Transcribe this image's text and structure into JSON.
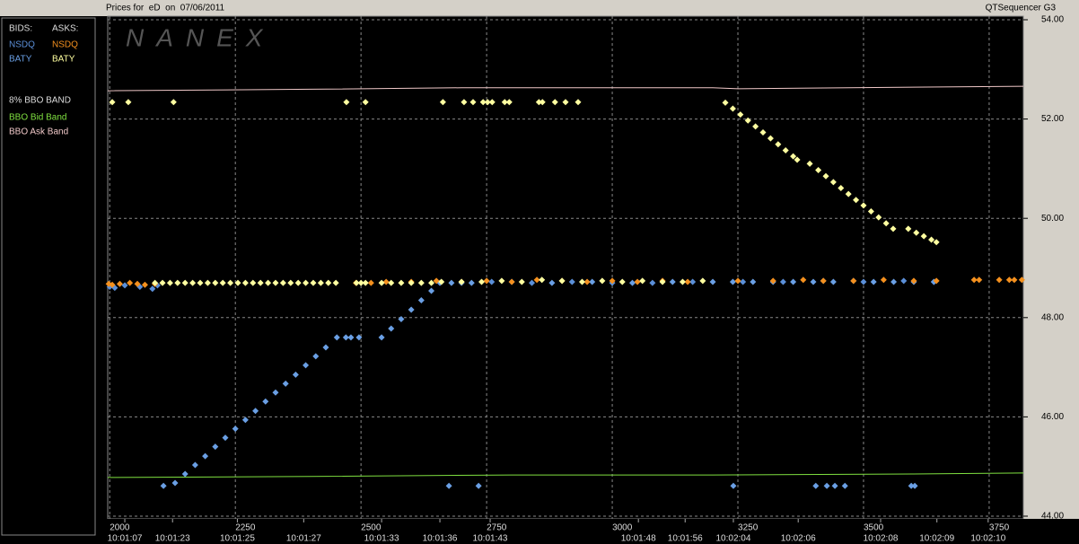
{
  "chart_data": {
    "type": "scatter",
    "title": "Prices for  eD  on  07/06/2011",
    "product": "QTSequencer G3",
    "watermark": "NANEX",
    "legend": {
      "bids_label": "BIDS:",
      "asks_label": "ASKS:",
      "band_label": "8% BBO BAND"
    },
    "xlim": [
      1996,
      3818
    ],
    "ylim": [
      44,
      54
    ],
    "xticks": [
      2000,
      2250,
      2500,
      2750,
      3000,
      3250,
      3500,
      3750
    ],
    "yticks": [
      {
        "value": 44,
        "label": "44.00"
      },
      {
        "value": 46,
        "label": "46.00"
      },
      {
        "value": 48,
        "label": "48.00"
      },
      {
        "value": 50,
        "label": "50.00"
      },
      {
        "value": 52,
        "label": "52.00"
      },
      {
        "value": 54,
        "label": "54.00"
      }
    ],
    "time_ticks": [
      {
        "value": 2030,
        "label": "10:01:07"
      },
      {
        "value": 2125,
        "label": "10:01:23"
      },
      {
        "value": 2254,
        "label": "10:01:25"
      },
      {
        "value": 2386,
        "label": "10:01:27"
      },
      {
        "value": 2541,
        "label": "10:01:33"
      },
      {
        "value": 2657,
        "label": "10:01:36"
      },
      {
        "value": 2757,
        "label": "10:01:43"
      },
      {
        "value": 3052,
        "label": "10:01:48"
      },
      {
        "value": 3145,
        "label": "10:01:56"
      },
      {
        "value": 3241,
        "label": "10:02:04"
      },
      {
        "value": 3370,
        "label": "10:02:06"
      },
      {
        "value": 3534,
        "label": "10:02:08"
      },
      {
        "value": 3646,
        "label": "10:02:09"
      },
      {
        "value": 3748,
        "label": "10:02:10"
      }
    ],
    "grid": true,
    "series": [
      {
        "name": "NSDQ",
        "side": "bid",
        "kind": "points",
        "color": "#5b8fd8",
        "x": [
          2000,
          2010,
          2030,
          2060,
          2085,
          2095,
          2700,
          2760,
          2840,
          2920,
          3000,
          3080,
          3160,
          3260,
          3340,
          3420,
          3500,
          3580,
          3640
        ],
        "values": [
          48.62,
          48.6,
          48.65,
          48.62,
          48.58,
          48.65,
          48.7,
          48.72,
          48.7,
          48.72,
          48.7,
          48.7,
          48.72,
          48.72,
          48.72,
          48.74,
          48.72,
          48.74,
          48.72
        ]
      },
      {
        "name": "BATY",
        "side": "bid",
        "kind": "points",
        "color": "#6a9fe4",
        "x": [
          2130,
          2150,
          2170,
          2190,
          2210,
          2230,
          2250,
          2270,
          2290,
          2310,
          2330,
          2350,
          2370,
          2390,
          2410,
          2430,
          2452,
          2470,
          2480,
          2496,
          2541,
          2560,
          2580,
          2600,
          2620,
          2640,
          2657,
          2680,
          2720,
          2800,
          2880,
          2960,
          3040,
          3120,
          3200,
          3240,
          3280,
          3320,
          3360,
          3400,
          3440,
          3480,
          3520,
          3560,
          3600,
          3640,
          2107,
          2675,
          2734,
          3241,
          3405,
          3427,
          3443,
          3463,
          3595,
          3602
        ],
        "values": [
          44.67,
          44.85,
          45.03,
          45.21,
          45.4,
          45.58,
          45.76,
          45.94,
          46.12,
          46.31,
          46.49,
          46.67,
          46.85,
          47.04,
          47.22,
          47.4,
          47.6,
          47.6,
          47.6,
          47.6,
          47.6,
          47.78,
          47.97,
          48.16,
          48.35,
          48.54,
          48.7,
          48.7,
          48.7,
          48.72,
          48.7,
          48.72,
          48.7,
          48.72,
          48.72,
          48.72,
          48.72,
          48.72,
          48.72,
          48.72,
          48.72,
          48.74,
          48.72,
          48.72,
          48.72,
          48.72,
          44.61,
          44.61,
          44.61,
          44.61,
          44.61,
          44.61,
          44.61,
          44.61,
          44.61,
          44.61
        ]
      },
      {
        "name": "NSDQ",
        "side": "ask",
        "kind": "points",
        "color": "#f4901e",
        "x": [
          1998,
          2005,
          2020,
          2040,
          2055,
          2070,
          2090,
          2490,
          2520,
          2550,
          2600,
          2650,
          2700,
          2750,
          2800,
          2850,
          2900,
          2950,
          3000,
          3050,
          3100,
          3150,
          3250,
          3320,
          3380,
          3420,
          3480,
          3540,
          3600,
          3645,
          3720,
          3730,
          3770,
          3790,
          3800,
          3815
        ],
        "values": [
          48.68,
          48.66,
          48.68,
          48.7,
          48.68,
          48.66,
          48.68,
          48.7,
          48.7,
          48.72,
          48.72,
          48.74,
          48.72,
          48.74,
          48.72,
          48.76,
          48.74,
          48.72,
          48.74,
          48.72,
          48.74,
          48.72,
          48.74,
          48.74,
          48.76,
          48.74,
          48.74,
          48.76,
          48.74,
          48.74,
          48.76,
          48.76,
          48.76,
          48.76,
          48.76,
          48.76
        ]
      },
      {
        "name": "BATY",
        "side": "ask",
        "kind": "points",
        "color": "#ffffa0",
        "x": [
          2005,
          2037,
          2127,
          2471,
          2509,
          2663,
          2705,
          2723,
          2743,
          2752,
          2761,
          2786,
          2795,
          2854,
          2861,
          2886,
          2907,
          2932,
          2090,
          2105,
          2120,
          2135,
          2150,
          2165,
          2180,
          2195,
          2210,
          2225,
          2240,
          2255,
          2270,
          2285,
          2300,
          2315,
          2330,
          2345,
          2360,
          2375,
          2390,
          2405,
          2420,
          2435,
          2450,
          2491,
          2500,
          2509,
          2541,
          2560,
          2580,
          2600,
          2620,
          2640,
          2660,
          2700,
          2740,
          2780,
          2820,
          2860,
          2900,
          2940,
          2980,
          3020,
          3060,
          3100,
          3140,
          3180,
          3225,
          3240,
          3255,
          3270,
          3285,
          3300,
          3315,
          3330,
          3345,
          3360,
          3368,
          3393,
          3410,
          3425,
          3440,
          3455,
          3470,
          3485,
          3500,
          3515,
          3530,
          3545,
          3559,
          3589,
          3605,
          3620,
          3635,
          3645
        ],
        "values": [
          52.34,
          52.34,
          52.34,
          52.34,
          52.34,
          52.34,
          52.34,
          52.34,
          52.34,
          52.34,
          52.34,
          52.34,
          52.34,
          52.34,
          52.34,
          52.34,
          52.34,
          52.34,
          48.7,
          48.7,
          48.7,
          48.7,
          48.7,
          48.7,
          48.7,
          48.7,
          48.7,
          48.7,
          48.7,
          48.7,
          48.7,
          48.7,
          48.7,
          48.7,
          48.7,
          48.7,
          48.7,
          48.7,
          48.7,
          48.7,
          48.7,
          48.7,
          48.7,
          48.7,
          48.7,
          48.7,
          48.7,
          48.7,
          48.7,
          48.7,
          48.7,
          48.7,
          48.72,
          48.72,
          48.72,
          48.74,
          48.72,
          48.76,
          48.74,
          48.72,
          48.74,
          48.72,
          48.74,
          48.72,
          48.72,
          48.74,
          52.33,
          52.21,
          52.09,
          51.97,
          51.85,
          51.73,
          51.61,
          51.49,
          51.37,
          51.25,
          51.18,
          51.1,
          50.97,
          50.85,
          50.73,
          50.61,
          50.49,
          50.37,
          50.26,
          50.14,
          50.02,
          49.9,
          49.79,
          49.79,
          49.71,
          49.64,
          49.57,
          49.52
        ]
      },
      {
        "name": "BBO Bid Band",
        "side": "band",
        "kind": "line",
        "color": "#7fe040",
        "x": [
          1996,
          2400,
          2800,
          3200,
          3600,
          3818
        ],
        "values": [
          44.78,
          44.8,
          44.83,
          44.83,
          44.85,
          44.87
        ]
      },
      {
        "name": "BBO Ask Band",
        "side": "band",
        "kind": "line",
        "color": "#f0c8c8",
        "x": [
          1996,
          2400,
          2700,
          3200,
          3250,
          3818
        ],
        "values": [
          52.57,
          52.6,
          52.63,
          52.63,
          52.61,
          52.66
        ]
      }
    ]
  }
}
